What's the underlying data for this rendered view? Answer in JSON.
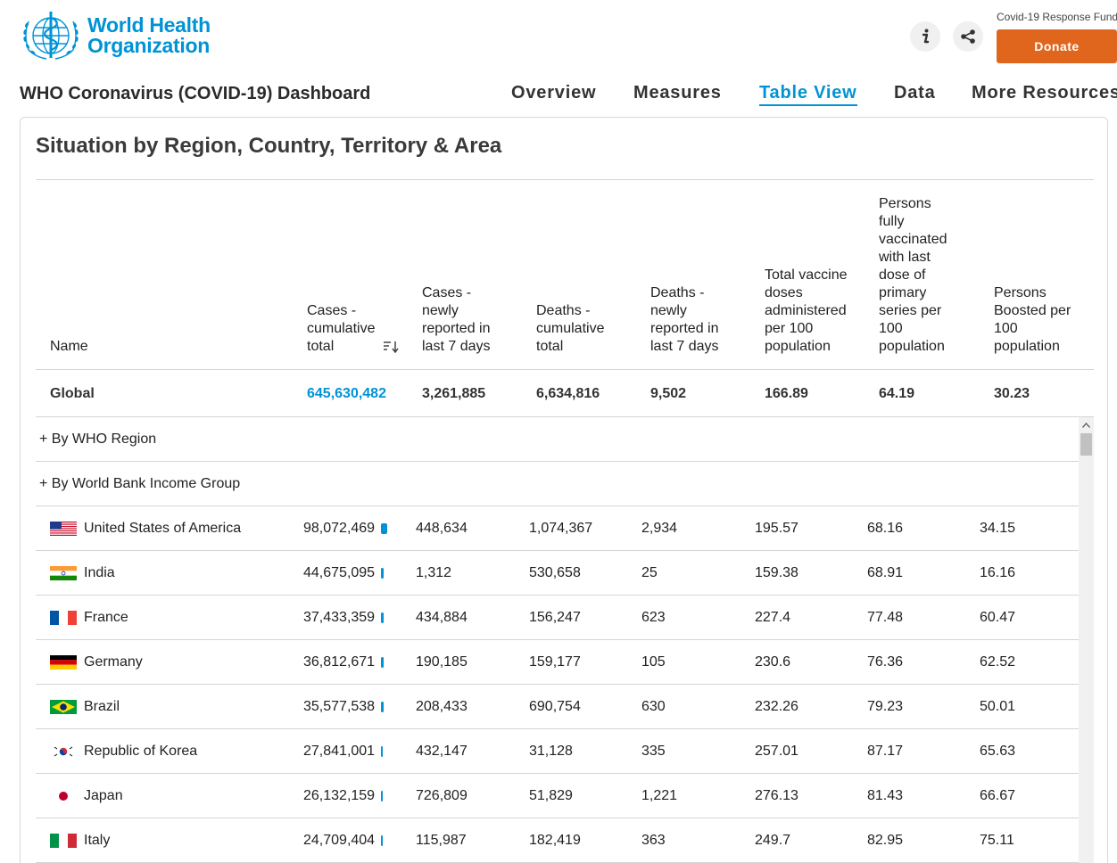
{
  "brand": {
    "line1": "World Health",
    "line2": "Organization"
  },
  "header": {
    "info_icon": "info-icon",
    "share_icon": "share-icon",
    "donate_caption": "Covid-19 Response Fund",
    "donate_label": "Donate"
  },
  "dashboard_title": "WHO Coronavirus (COVID-19) Dashboard",
  "nav": [
    "Overview",
    "Measures",
    "Table View",
    "Data",
    "More Resources"
  ],
  "nav_active": "Table View",
  "card": {
    "title": "Situation by Region, Country, Territory & Area"
  },
  "columns": [
    "Name",
    "Cases - cumulative total",
    "Cases - newly reported in last 7 days",
    "Deaths - cumulative total",
    "Deaths - newly reported in last 7 days",
    "Total vaccine doses administered per 100 population",
    "Persons fully vaccinated with last dose of primary series per 100 population",
    "Persons Boosted per 100 population"
  ],
  "global": {
    "name": "Global",
    "cases_total": "645,630,482",
    "cases_7d": "3,261,885",
    "deaths_total": "6,634,816",
    "deaths_7d": "9,502",
    "doses_per_100": "166.89",
    "fully_vaccinated_per_100": "64.19",
    "boosted_per_100": "30.23"
  },
  "groups": [
    "+ By WHO Region",
    "+ By World Bank Income Group"
  ],
  "rows": [
    {
      "name": "United States of America",
      "flag": "us",
      "cases_total": "98,072,469",
      "bar_fraction": 1.0,
      "cases_7d": "448,634",
      "deaths_total": "1,074,367",
      "deaths_7d": "2,934",
      "doses": "195.57",
      "fully": "68.16",
      "boosted": "34.15"
    },
    {
      "name": "India",
      "flag": "in",
      "cases_total": "44,675,095",
      "bar_fraction": 0.456,
      "cases_7d": "1,312",
      "deaths_total": "530,658",
      "deaths_7d": "25",
      "doses": "159.38",
      "fully": "68.91",
      "boosted": "16.16"
    },
    {
      "name": "France",
      "flag": "fr",
      "cases_total": "37,433,359",
      "bar_fraction": 0.382,
      "cases_7d": "434,884",
      "deaths_total": "156,247",
      "deaths_7d": "623",
      "doses": "227.4",
      "fully": "77.48",
      "boosted": "60.47"
    },
    {
      "name": "Germany",
      "flag": "de",
      "cases_total": "36,812,671",
      "bar_fraction": 0.375,
      "cases_7d": "190,185",
      "deaths_total": "159,177",
      "deaths_7d": "105",
      "doses": "230.6",
      "fully": "76.36",
      "boosted": "62.52"
    },
    {
      "name": "Brazil",
      "flag": "br",
      "cases_total": "35,577,538",
      "bar_fraction": 0.363,
      "cases_7d": "208,433",
      "deaths_total": "690,754",
      "deaths_7d": "630",
      "doses": "232.26",
      "fully": "79.23",
      "boosted": "50.01"
    },
    {
      "name": "Republic of Korea",
      "flag": "kr",
      "cases_total": "27,841,001",
      "bar_fraction": 0.284,
      "cases_7d": "432,147",
      "deaths_total": "31,128",
      "deaths_7d": "335",
      "doses": "257.01",
      "fully": "87.17",
      "boosted": "65.63"
    },
    {
      "name": "Japan",
      "flag": "jp",
      "cases_total": "26,132,159",
      "bar_fraction": 0.266,
      "cases_7d": "726,809",
      "deaths_total": "51,829",
      "deaths_7d": "1,221",
      "doses": "276.13",
      "fully": "81.43",
      "boosted": "66.67"
    },
    {
      "name": "Italy",
      "flag": "it",
      "cases_total": "24,709,404",
      "bar_fraction": 0.252,
      "cases_7d": "115,987",
      "deaths_total": "182,419",
      "deaths_7d": "363",
      "doses": "249.7",
      "fully": "82.95",
      "boosted": "75.11"
    }
  ],
  "colors": {
    "accent": "#0093d5",
    "donate": "#e0661e"
  }
}
